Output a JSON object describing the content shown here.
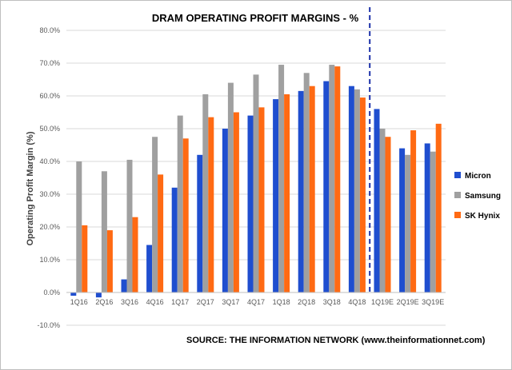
{
  "chart_data": {
    "type": "bar",
    "title": "DRAM OPERATING PROFIT MARGINS - %",
    "ylabel": "Operating Profit Margin (%)",
    "xlabel": "",
    "source": "SOURCE: THE INFORMATION  NETWORK (www.theinformationnet.com)",
    "ylim": [
      -10,
      80
    ],
    "ytick_step": 10,
    "ytick_labels": [
      "-10.0%",
      "0.0%",
      "10.0%",
      "20.0%",
      "30.0%",
      "40.0%",
      "50.0%",
      "60.0%",
      "70.0%",
      "80.0%"
    ],
    "grid": true,
    "legend_position": "right",
    "categories": [
      "1Q16",
      "2Q16",
      "3Q16",
      "4Q16",
      "1Q17",
      "2Q17",
      "3Q17",
      "4Q17",
      "1Q18",
      "2Q18",
      "3Q18",
      "4Q18",
      "1Q19E",
      "2Q19E",
      "3Q19E"
    ],
    "divider_after_category": "4Q18",
    "series": [
      {
        "name": "Micron",
        "color": "#1f4ecf",
        "values": [
          -1,
          -1.5,
          4,
          14.5,
          32,
          42,
          50,
          54,
          59,
          61.5,
          64.5,
          63,
          56,
          44,
          45.5
        ]
      },
      {
        "name": "Samsung",
        "color": "#a0a0a0",
        "values": [
          40,
          37,
          40.5,
          47.5,
          54,
          60.5,
          64,
          66.5,
          69.5,
          67,
          69.5,
          62,
          50,
          42,
          43
        ]
      },
      {
        "name": "SK Hynix",
        "color": "#ff6a13",
        "values": [
          20.5,
          19,
          23,
          36,
          47,
          53.5,
          55,
          56.5,
          60.5,
          63,
          69,
          59.5,
          47.5,
          49.5,
          51.5
        ]
      }
    ]
  }
}
